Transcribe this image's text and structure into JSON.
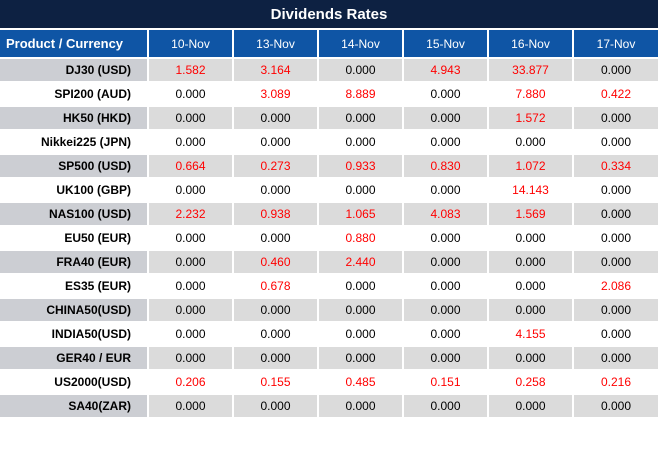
{
  "title": "Dividends Rates",
  "chart_data": {
    "type": "table",
    "title": "Dividends Rates",
    "columns": [
      "Product / Currency",
      "10-Nov",
      "13-Nov",
      "14-Nov",
      "15-Nov",
      "16-Nov",
      "17-Nov"
    ],
    "rows": [
      {
        "product": "DJ30 (USD)",
        "values": [
          "1.582",
          "3.164",
          "0.000",
          "4.943",
          "33.877",
          "0.000"
        ]
      },
      {
        "product": "SPI200 (AUD)",
        "values": [
          "0.000",
          "3.089",
          "8.889",
          "0.000",
          "7.880",
          "0.422"
        ]
      },
      {
        "product": "HK50 (HKD)",
        "values": [
          "0.000",
          "0.000",
          "0.000",
          "0.000",
          "1.572",
          "0.000"
        ]
      },
      {
        "product": "Nikkei225 (JPN)",
        "values": [
          "0.000",
          "0.000",
          "0.000",
          "0.000",
          "0.000",
          "0.000"
        ]
      },
      {
        "product": "SP500 (USD)",
        "values": [
          "0.664",
          "0.273",
          "0.933",
          "0.830",
          "1.072",
          "0.334"
        ]
      },
      {
        "product": "UK100 (GBP)",
        "values": [
          "0.000",
          "0.000",
          "0.000",
          "0.000",
          "14.143",
          "0.000"
        ]
      },
      {
        "product": "NAS100 (USD)",
        "values": [
          "2.232",
          "0.938",
          "1.065",
          "4.083",
          "1.569",
          "0.000"
        ]
      },
      {
        "product": "EU50 (EUR)",
        "values": [
          "0.000",
          "0.000",
          "0.880",
          "0.000",
          "0.000",
          "0.000"
        ]
      },
      {
        "product": "FRA40 (EUR)",
        "values": [
          "0.000",
          "0.460",
          "2.440",
          "0.000",
          "0.000",
          "0.000"
        ]
      },
      {
        "product": "ES35 (EUR)",
        "values": [
          "0.000",
          "0.678",
          "0.000",
          "0.000",
          "0.000",
          "2.086"
        ]
      },
      {
        "product": "CHINA50(USD)",
        "values": [
          "0.000",
          "0.000",
          "0.000",
          "0.000",
          "0.000",
          "0.000"
        ]
      },
      {
        "product": "INDIA50(USD)",
        "values": [
          "0.000",
          "0.000",
          "0.000",
          "0.000",
          "4.155",
          "0.000"
        ]
      },
      {
        "product": "GER40 / EUR",
        "values": [
          "0.000",
          "0.000",
          "0.000",
          "0.000",
          "0.000",
          "0.000"
        ]
      },
      {
        "product": "US2000(USD)",
        "values": [
          "0.206",
          "0.155",
          "0.485",
          "0.151",
          "0.258",
          "0.216"
        ]
      },
      {
        "product": "SA40(ZAR)",
        "values": [
          "0.000",
          "0.000",
          "0.000",
          "0.000",
          "0.000",
          "0.000"
        ]
      }
    ],
    "zero_value": "0.000",
    "value_color_rule": "non-zero values rendered red, zero values black",
    "layout_hints": {
      "striped_rows": "odd data rows shaded grey starting with first row",
      "product_column_align": "right",
      "value_align": "center"
    }
  },
  "colors": {
    "title_bg": "#0d2142",
    "header_bg": "#0f55a5",
    "row_stripe": "#dbdbdb",
    "product_stripe": "#ccced3",
    "value_nonzero": "#ff0000",
    "value_zero": "#000000",
    "grid": "#ffffff"
  }
}
